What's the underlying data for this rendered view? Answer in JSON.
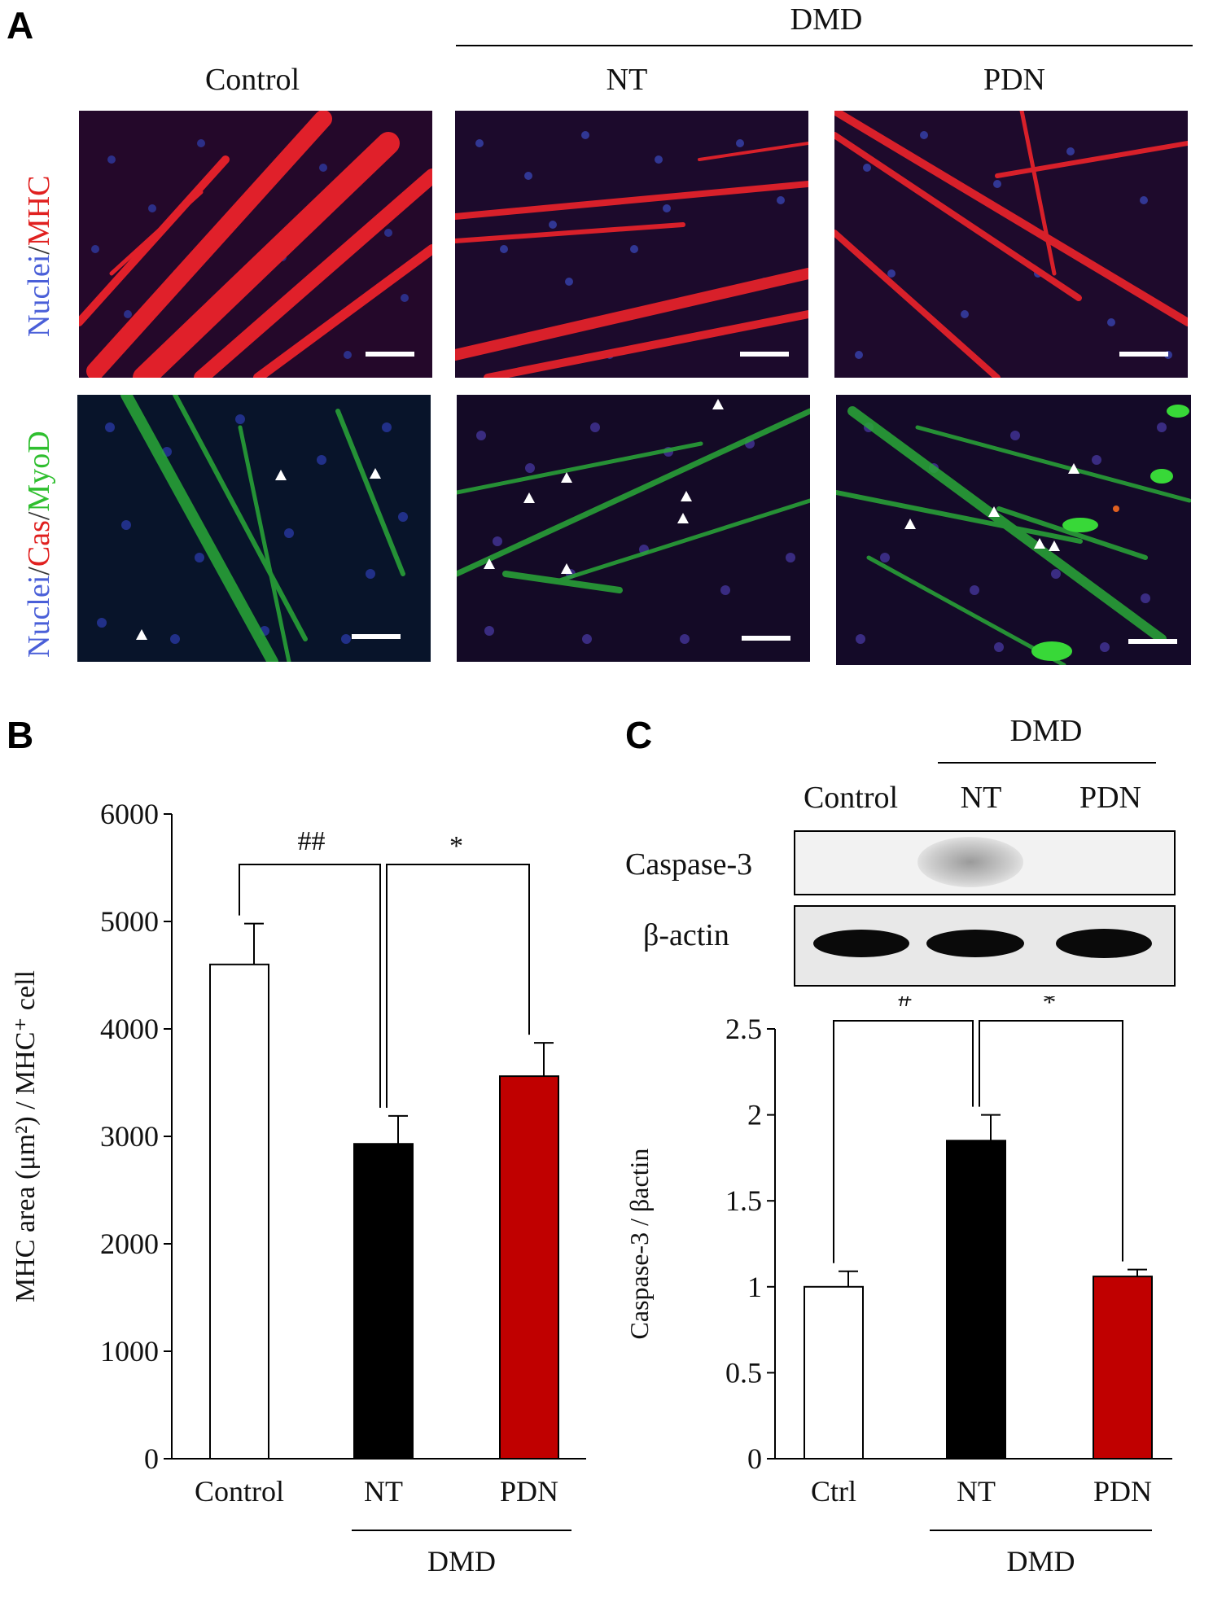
{
  "panelA": {
    "letter": "A",
    "group_label": "DMD",
    "columns": [
      "Control",
      "NT",
      "PDN"
    ],
    "row1_label": {
      "part1": "Nuclei",
      "sep": "/",
      "part2": "MHC"
    },
    "row2_label": {
      "part1": "Nuclei",
      "sep1": "/",
      "part2": "Cas",
      "sep2": "/",
      "part3": "MyoD"
    },
    "colors": {
      "nuclei": "#4a5fd8",
      "mhc": "#e0201f",
      "cas": "#e0201f",
      "myod": "#2fbf2f"
    }
  },
  "panelB": {
    "letter": "B",
    "group_label": "DMD",
    "sig_left": "##",
    "sig_right": "*"
  },
  "panelC": {
    "letter": "C",
    "group_label": "DMD",
    "blot_columns": [
      "Control",
      "NT",
      "PDN"
    ],
    "blot_rows": [
      "Caspase-3",
      "β-actin"
    ],
    "sig_left": "#",
    "sig_right": "*"
  },
  "chart_data": [
    {
      "type": "bar",
      "title": "",
      "ylabel": "MHC area (μm²) / MHC⁺ cell",
      "xlabel": "DMD",
      "categories": [
        "Control",
        "NT",
        "PDN"
      ],
      "values": [
        4600,
        2930,
        3560
      ],
      "errors": [
        380,
        260,
        310
      ],
      "colors": [
        "#ffffff",
        "#000000",
        "#c00000"
      ],
      "ylim": [
        0,
        6000
      ],
      "yticks": [
        0,
        1000,
        2000,
        3000,
        4000,
        5000,
        6000
      ],
      "ytick_labels": [
        "0",
        "1000",
        "2000",
        "3000",
        "4000",
        "5000",
        "6000"
      ]
    },
    {
      "type": "bar",
      "title": "",
      "ylabel": "Caspase-3 / βactin",
      "xlabel": "DMD",
      "categories": [
        "Ctrl",
        "NT",
        "PDN"
      ],
      "values": [
        1.0,
        1.85,
        1.06
      ],
      "errors": [
        0.09,
        0.15,
        0.04
      ],
      "colors": [
        "#ffffff",
        "#000000",
        "#c00000"
      ],
      "ylim": [
        0,
        2.5
      ],
      "yticks": [
        0,
        0.5,
        1,
        1.5,
        2,
        2.5
      ],
      "ytick_labels": [
        "0",
        "0.5",
        "1",
        "1.5",
        "2",
        "2.5"
      ]
    }
  ]
}
